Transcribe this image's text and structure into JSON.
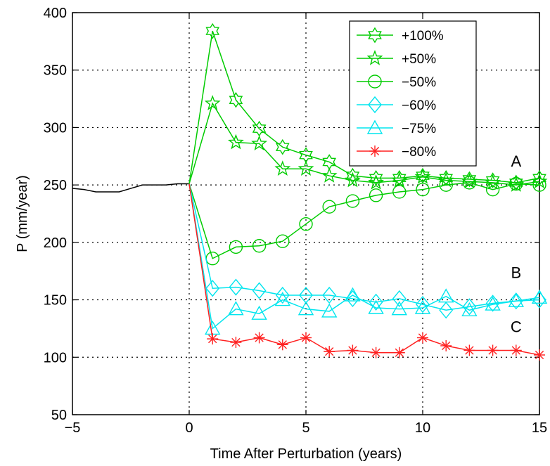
{
  "chart_data": {
    "type": "line",
    "xlabel": "Time After Perturbation (years)",
    "ylabel": "P (mm/year)",
    "xlim": [
      -5,
      15
    ],
    "ylim": [
      50,
      400
    ],
    "xticks": [
      -5,
      0,
      5,
      10,
      15
    ],
    "yticks": [
      50,
      100,
      150,
      200,
      250,
      300,
      350,
      400
    ],
    "xtick_labels": [
      "−5",
      "0",
      "5",
      "10",
      "15"
    ],
    "ytick_labels": [
      "50",
      "100",
      "150",
      "200",
      "250",
      "300",
      "350",
      "400"
    ],
    "grid": "dotted",
    "legend_position": "top-right",
    "baseline": {
      "color": "#000000",
      "x": [
        -5,
        -4.5,
        -4,
        -3.5,
        -3,
        -2.5,
        -2,
        -1.5,
        -1,
        -0.5,
        0
      ],
      "y": [
        247,
        246,
        244,
        244,
        244,
        247,
        250,
        250,
        250,
        251,
        251
      ]
    },
    "series": [
      {
        "name": "+100%",
        "color": "#00cc00",
        "marker": "hexagram",
        "x": [
          0,
          1,
          2,
          3,
          4,
          5,
          6,
          7,
          8,
          9,
          10,
          11,
          12,
          13,
          14,
          15
        ],
        "y": [
          251,
          384,
          324,
          299,
          283,
          276,
          270,
          258,
          256,
          256,
          258,
          256,
          255,
          254,
          252,
          256
        ]
      },
      {
        "name": "+50%",
        "color": "#00cc00",
        "marker": "star5",
        "x": [
          0,
          1,
          2,
          3,
          4,
          5,
          6,
          7,
          8,
          9,
          10,
          11,
          12,
          13,
          14,
          15
        ],
        "y": [
          251,
          321,
          287,
          286,
          264,
          264,
          258,
          254,
          252,
          254,
          257,
          254,
          253,
          252,
          250,
          253
        ]
      },
      {
        "name": "−50%",
        "color": "#00cc00",
        "marker": "circle",
        "x": [
          0,
          1,
          2,
          3,
          4,
          5,
          6,
          7,
          8,
          9,
          10,
          11,
          12,
          13,
          14,
          15
        ],
        "y": [
          251,
          186,
          196,
          197,
          201,
          216,
          231,
          236,
          241,
          244,
          246,
          250,
          252,
          246,
          251,
          250
        ]
      },
      {
        "name": "−60%",
        "color": "#00e5ee",
        "marker": "diamond",
        "x": [
          0,
          1,
          2,
          3,
          4,
          5,
          6,
          7,
          8,
          9,
          10,
          11,
          12,
          13,
          14,
          15
        ],
        "y": [
          251,
          160,
          161,
          158,
          154,
          154,
          154,
          151,
          148,
          151,
          146,
          141,
          144,
          147,
          149,
          150
        ]
      },
      {
        "name": "−75%",
        "color": "#00e5ee",
        "marker": "triangle",
        "x": [
          0,
          1,
          2,
          3,
          4,
          5,
          6,
          7,
          8,
          9,
          10,
          11,
          12,
          13,
          14,
          15
        ],
        "y": [
          251,
          125,
          142,
          138,
          150,
          142,
          140,
          154,
          143,
          142,
          143,
          153,
          141,
          146,
          149,
          152
        ]
      },
      {
        "name": "−80%",
        "color": "#ff2020",
        "marker": "asterisk",
        "x": [
          0,
          1,
          2,
          3,
          4,
          5,
          6,
          7,
          8,
          9,
          10,
          11,
          12,
          13,
          14,
          15
        ],
        "y": [
          251,
          116,
          113,
          117,
          111,
          117,
          105,
          106,
          104,
          104,
          117,
          110,
          106,
          106,
          106,
          102
        ]
      }
    ],
    "annotations": [
      {
        "text": "A",
        "x": 14.0,
        "y": 266
      },
      {
        "text": "B",
        "x": 14.0,
        "y": 169
      },
      {
        "text": "C",
        "x": 14.0,
        "y": 122
      }
    ]
  }
}
